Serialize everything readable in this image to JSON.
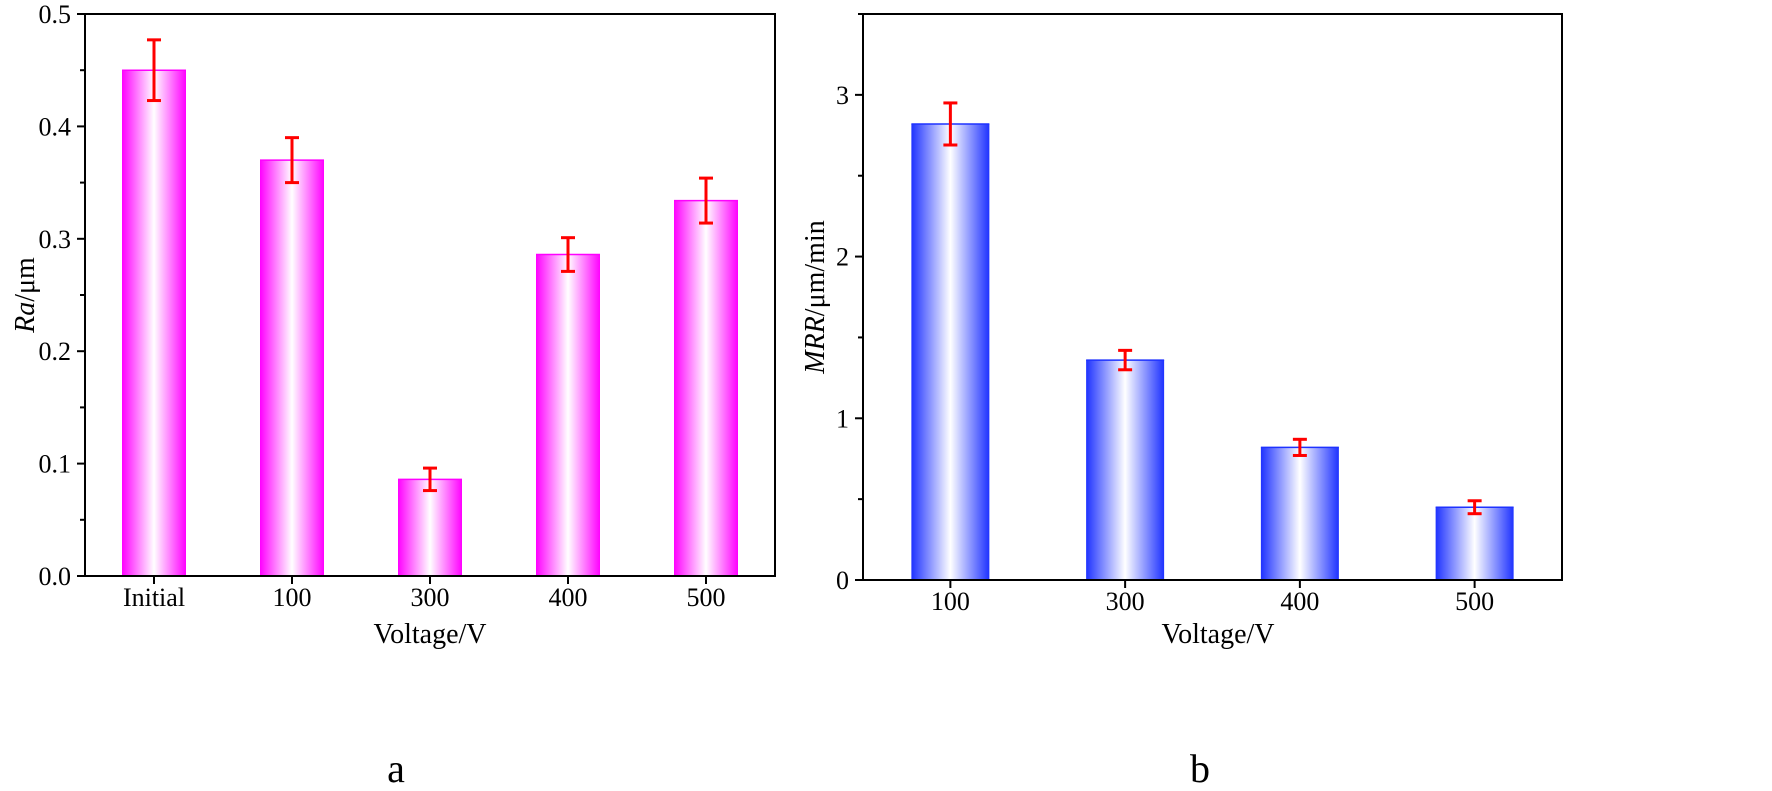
{
  "chart_data": [
    {
      "type": "bar",
      "panel_label": "a",
      "title": "",
      "categories": [
        "Initial",
        "100",
        "300",
        "400",
        "500"
      ],
      "values": [
        0.45,
        0.37,
        0.086,
        0.286,
        0.334
      ],
      "errors": [
        0.027,
        0.02,
        0.01,
        0.015,
        0.02
      ],
      "xlabel": "Voltage/V",
      "ylabel_main": "Ra",
      "ylabel_unit": "/μm",
      "ylim": [
        0,
        0.5
      ],
      "yticks": [
        "0.0",
        "0.1",
        "0.2",
        "0.3",
        "0.4",
        "0.5"
      ],
      "bar_color": "#ff00ff",
      "error_color": "#ff0000",
      "grid": false
    },
    {
      "type": "bar",
      "panel_label": "b",
      "title": "",
      "categories": [
        "100",
        "300",
        "400",
        "500"
      ],
      "values": [
        2.82,
        1.36,
        0.82,
        0.45
      ],
      "errors": [
        0.13,
        0.06,
        0.05,
        0.04
      ],
      "xlabel": "Voltage/V",
      "ylabel_main": "MRR",
      "ylabel_unit": "/μm/min",
      "ylim": [
        0,
        3.5
      ],
      "yticks": [
        "0",
        "1",
        "2",
        "3"
      ],
      "bar_color": "#1e32ff",
      "error_color": "#ff0000",
      "grid": false
    }
  ]
}
